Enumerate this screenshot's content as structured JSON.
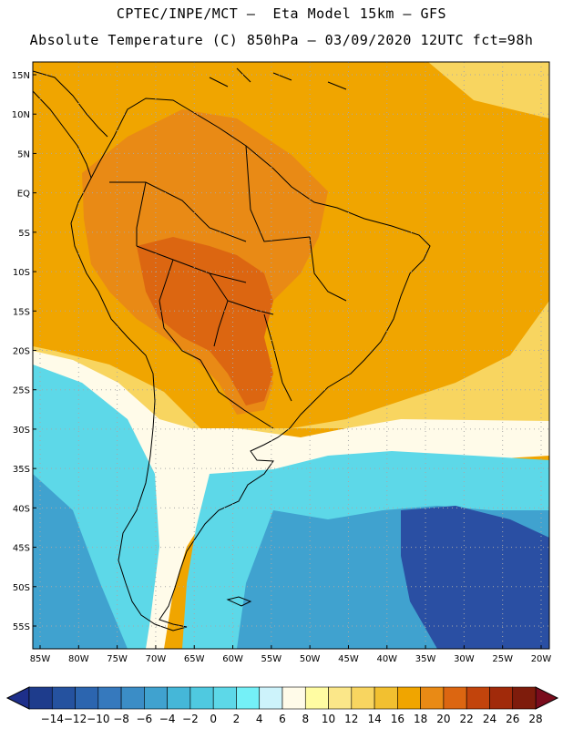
{
  "header": {
    "line1": "CPTEC/INPE/MCT –  Eta Model 15km – GFS",
    "line2": "Absolute Temperature (C) 850hPa – 03/09/2020 12UTC fct=98h"
  },
  "map": {
    "lat_labels": [
      "15N",
      "10N",
      "5N",
      "EQ",
      "5S",
      "10S",
      "15S",
      "20S",
      "25S",
      "30S",
      "35S",
      "40S",
      "45S",
      "50S",
      "55S"
    ],
    "lon_labels": [
      "85W",
      "80W",
      "75W",
      "70W",
      "65W",
      "60W",
      "55W",
      "50W",
      "45W",
      "40W",
      "35W",
      "30W",
      "25W",
      "20W"
    ]
  },
  "colorbar": {
    "labels": [
      "-14",
      "-12",
      "-10",
      "-8",
      "-6",
      "-4",
      "-2",
      "0",
      "2",
      "4",
      "6",
      "8",
      "10",
      "12",
      "14",
      "16",
      "18",
      "20",
      "22",
      "24",
      "26",
      "28"
    ],
    "colors": [
      "#1e3c8c",
      "#25529f",
      "#2c65af",
      "#3679bd",
      "#3b8dc6",
      "#40a2cf",
      "#45b7d8",
      "#4fc9e0",
      "#5dd8e8",
      "#74f0f7",
      "#cdf3fb",
      "#fffbe9",
      "#fffca2",
      "#fbe789",
      "#f8d560",
      "#f2c030",
      "#f0a500",
      "#e98a15",
      "#dc6611",
      "#c2440c",
      "#a12a0a",
      "#7e1c0c"
    ],
    "left_color": "#1e2f8a",
    "right_color": "#7a0c1d"
  },
  "field_colors": {
    "ocean_cold_deep": "#2a4fa3",
    "ocean_cold": "#40a2cf",
    "ocean_cyan": "#5dd8e8",
    "pale": "#fffbe9",
    "yellow": "#f8d560",
    "orange": "#f0a500",
    "dark_orange": "#e98a15",
    "red_orange": "#dc6611"
  }
}
